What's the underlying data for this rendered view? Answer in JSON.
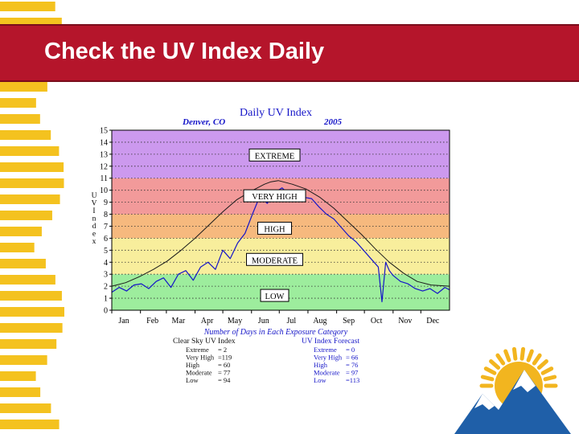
{
  "slide": {
    "title": "Check the UV Index Daily"
  },
  "colors": {
    "title_bar": "#b5152b",
    "extreme": "#cc99ee",
    "very_high": "#f29a9a",
    "high": "#f6b97e",
    "moderate": "#f8ee9c",
    "low": "#9ded9d",
    "clear_sky_line": "#1a1a1a",
    "forecast_line": "#1515c8",
    "stripes": "#f4c21f",
    "logo_sun": "#f2b51f",
    "logo_mountain": "#1f5fa8"
  },
  "chart_data": {
    "type": "line",
    "title": "Daily UV Index",
    "location": "Denver, CO",
    "year": "2005",
    "ylabel": "UV Index",
    "ylim": [
      0,
      15
    ],
    "yticks": [
      "0",
      "1",
      "2",
      "3",
      "4",
      "5",
      "6",
      "7",
      "8",
      "9",
      "10",
      "11",
      "12",
      "13",
      "14",
      "15"
    ],
    "month_labels": [
      "Jan",
      "Feb",
      "Mar",
      "Apr",
      "May",
      "Jun",
      "Jul",
      "Aug",
      "Sep",
      "Oct",
      "Nov",
      "Dec"
    ],
    "xlim": [
      0,
      365
    ],
    "month_starts": [
      0,
      31,
      59,
      90,
      120,
      151,
      181,
      212,
      243,
      273,
      304,
      334
    ],
    "grid": true,
    "bands": [
      {
        "label": "LOW",
        "from": 0,
        "to": 3
      },
      {
        "label": "MODERATE",
        "from": 3,
        "to": 6
      },
      {
        "label": "HIGH",
        "from": 6,
        "to": 8
      },
      {
        "label": "VERY HIGH",
        "from": 8,
        "to": 11
      },
      {
        "label": "EXTREME",
        "from": 11,
        "to": 15
      }
    ],
    "band_label_positions": {
      "LOW": 1.2,
      "MODERATE": 4.2,
      "HIGH": 6.8,
      "VERY HIGH": 9.5,
      "EXTREME": 12.9
    },
    "series": [
      {
        "name": "Clear Sky UV Index",
        "x": [
          0,
          15,
          30,
          45,
          60,
          75,
          90,
          105,
          120,
          135,
          150,
          165,
          172,
          180,
          195,
          210,
          225,
          240,
          255,
          270,
          285,
          300,
          315,
          330,
          345,
          365
        ],
        "values": [
          2.0,
          2.3,
          2.8,
          3.4,
          4.1,
          5.0,
          6.0,
          7.1,
          8.2,
          9.2,
          9.9,
          10.5,
          10.7,
          10.8,
          10.5,
          10.1,
          9.4,
          8.5,
          7.4,
          6.3,
          5.1,
          4.0,
          3.1,
          2.4,
          2.1,
          2.0
        ]
      },
      {
        "name": "UV Index Forecast",
        "x": [
          0,
          8,
          16,
          24,
          32,
          40,
          48,
          56,
          64,
          72,
          80,
          88,
          96,
          104,
          112,
          120,
          128,
          136,
          144,
          152,
          160,
          168,
          176,
          184,
          192,
          200,
          208,
          216,
          224,
          232,
          240,
          248,
          256,
          264,
          272,
          280,
          288,
          292,
          296,
          300,
          304,
          312,
          320,
          328,
          336,
          344,
          352,
          360,
          365
        ],
        "values": [
          1.5,
          1.9,
          1.6,
          2.1,
          2.2,
          1.8,
          2.4,
          2.7,
          1.9,
          3.0,
          3.3,
          2.5,
          3.6,
          4.0,
          3.4,
          5.0,
          4.3,
          5.6,
          6.4,
          8.0,
          9.5,
          8.9,
          9.8,
          10.2,
          9.6,
          10.0,
          9.4,
          9.3,
          8.6,
          8.0,
          7.6,
          6.9,
          6.2,
          5.7,
          5.0,
          4.3,
          3.6,
          0.7,
          4.0,
          3.3,
          2.9,
          2.4,
          2.2,
          1.8,
          1.6,
          1.8,
          1.4,
          1.9,
          1.7
        ]
      }
    ],
    "summary": {
      "title": "Number of Days in Each Exposure Category",
      "clear_sky": {
        "heading": "Clear Sky UV Index",
        "rows": [
          {
            "label": "Extreme",
            "value": "=   2"
          },
          {
            "label": "Very High",
            "value": "=119"
          },
          {
            "label": "High",
            "value": "=  60"
          },
          {
            "label": "Moderate",
            "value": "=  77"
          },
          {
            "label": "Low",
            "value": "=  94"
          }
        ]
      },
      "forecast": {
        "heading": "UV Index Forecast",
        "rows": [
          {
            "label": "Extreme",
            "value": "=   0"
          },
          {
            "label": "Very High",
            "value": "=  66"
          },
          {
            "label": "High",
            "value": "=  76"
          },
          {
            "label": "Moderate",
            "value": "=  97"
          },
          {
            "label": "Low",
            "value": "=113"
          }
        ]
      }
    }
  }
}
